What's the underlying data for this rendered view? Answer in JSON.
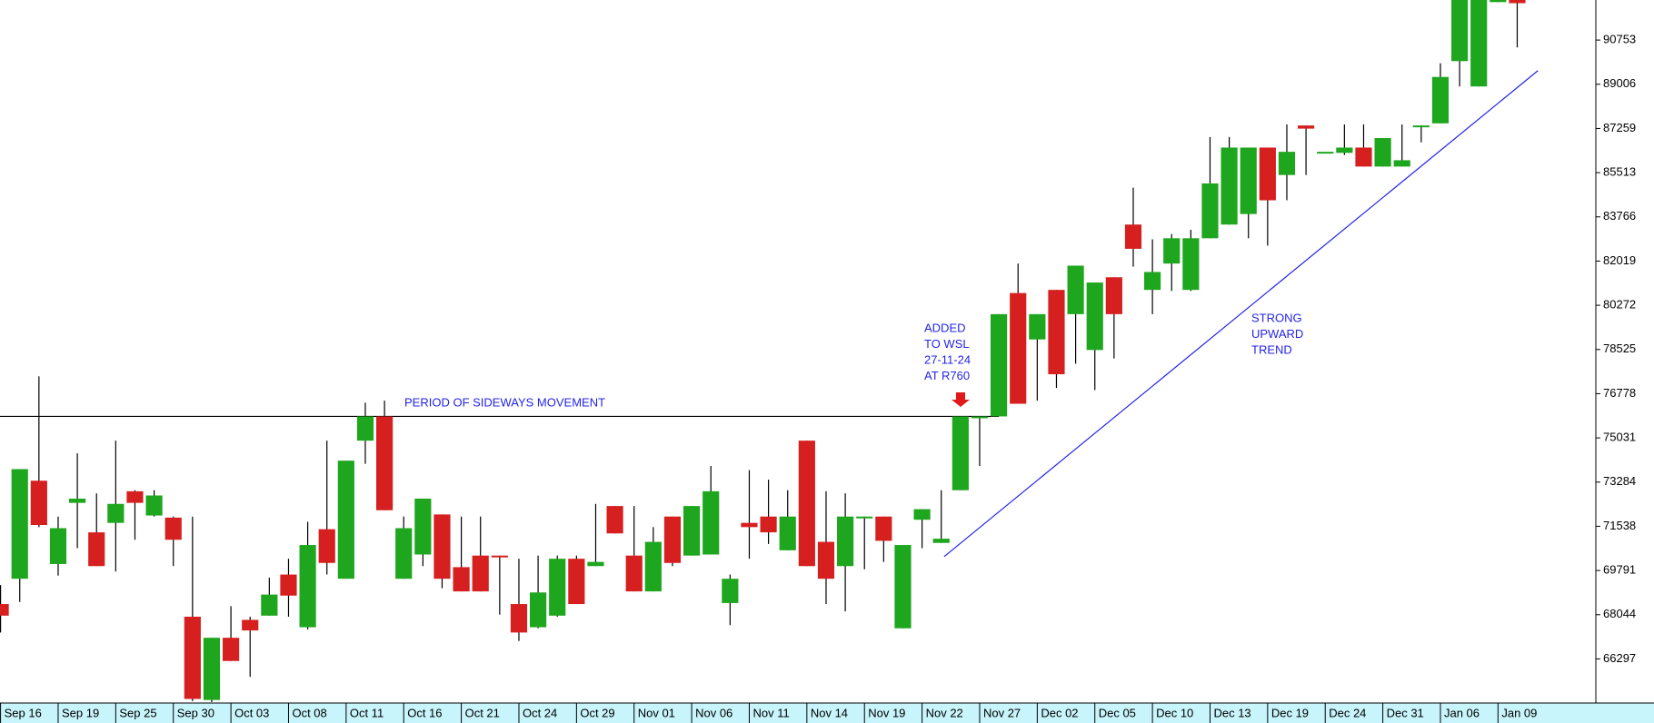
{
  "chart_data": {
    "type": "candlestick",
    "categories": [
      "Sep 16",
      null,
      null,
      "Sep 19",
      null,
      null,
      "Sep 25",
      null,
      null,
      "Sep 30",
      null,
      null,
      "Oct 03",
      null,
      null,
      "Oct 08",
      null,
      null,
      "Oct 11",
      null,
      null,
      "Oct 16",
      null,
      null,
      "Oct 21",
      null,
      null,
      "Oct 24",
      null,
      null,
      "Oct 29",
      null,
      null,
      "Nov 01",
      null,
      null,
      "Nov 06",
      null,
      null,
      "Nov 11",
      null,
      null,
      "Nov 14",
      null,
      null,
      "Nov 19",
      null,
      null,
      "Nov 22",
      null,
      null,
      "Nov 27",
      null,
      null,
      "Dec 02",
      null,
      null,
      "Dec 05",
      null,
      null,
      "Dec 10",
      null,
      null,
      "Dec 13",
      null,
      null,
      "Dec 19",
      null,
      null,
      "Dec 24",
      null,
      null,
      "Dec 31",
      null,
      null,
      "Jan 06",
      null,
      null,
      "Jan 09",
      null
    ],
    "open": [
      68465,
      69465,
      73339,
      70048,
      72464,
      71298,
      71673,
      72922,
      71964,
      71881,
      67965,
      64674,
      67132,
      67840,
      68007,
      69631,
      67548,
      71423,
      69465,
      74922,
      75880,
      69465,
      70423,
      72006,
      69923,
      70381,
      70381,
      68465,
      67548,
      68007,
      70256,
      69965,
      72339,
      70381,
      68965,
      71923,
      70381,
      70423,
      68506,
      71673,
      71923,
      70590,
      74922,
      70923,
      69965,
      71881,
      71923,
      67507,
      71798,
      70881,
      72964,
      75880,
      75880,
      80755,
      78922,
      80880,
      79921,
      78505,
      81379,
      83462,
      80880,
      81921,
      80880,
      82921,
      83462,
      83879,
      86504,
      85420,
      87378,
      86337,
      86295,
      86504,
      85754,
      85754,
      87378,
      87462,
      89920,
      88920,
      92253,
      92336
    ],
    "high": [
      69215,
      73797,
      77463,
      71923,
      74422,
      72839,
      74922,
      72964,
      72964,
      71923,
      71923,
      67132,
      68382,
      67965,
      69506,
      70256,
      71714,
      74922,
      74131,
      76422,
      76505,
      71923,
      72631,
      72006,
      71923,
      71923,
      70381,
      70256,
      70381,
      70381,
      70381,
      72423,
      72339,
      72339,
      71506,
      71923,
      72339,
      73922,
      69631,
      73756,
      73381,
      72964,
      74922,
      72922,
      72839,
      71923,
      71923,
      70798,
      72214,
      72964,
      75880,
      75880,
      79921,
      81921,
      79921,
      80880,
      81838,
      81171,
      81379,
      84920,
      82879,
      83087,
      83254,
      86920,
      86920,
      86504,
      86504,
      87420,
      87378,
      86337,
      87420,
      87420,
      86879,
      87420,
      87378,
      89836,
      92336,
      92336,
      92336,
      92336
    ],
    "low": [
      67340,
      68548,
      71506,
      69590,
      70673,
      69965,
      69756,
      71006,
      71923,
      69965,
      64632,
      64590,
      66215,
      65590,
      68007,
      67965,
      67465,
      69631,
      69465,
      74006,
      72173,
      69465,
      69965,
      69090,
      68965,
      68965,
      68048,
      67007,
      67507,
      67965,
      68465,
      69965,
      71256,
      68965,
      68965,
      69965,
      70381,
      70423,
      67632,
      70256,
      70839,
      70590,
      69965,
      68465,
      68173,
      69840,
      70131,
      67507,
      70673,
      70881,
      72964,
      73922,
      75880,
      76380,
      76505,
      77005,
      77963,
      76922,
      78172,
      81796,
      79921,
      80838,
      80838,
      82921,
      83462,
      82921,
      82629,
      84421,
      85420,
      86337,
      86212,
      85754,
      85754,
      85754,
      86712,
      87462,
      88920,
      88920,
      92253,
      90461
    ],
    "close": [
      68007,
      73797,
      71589,
      71464,
      72631,
      69965,
      72423,
      72464,
      72756,
      71006,
      64715,
      67132,
      66215,
      67423,
      68840,
      68798,
      70798,
      70090,
      74131,
      75880,
      72173,
      71464,
      72631,
      69465,
      68965,
      68965,
      70340,
      67340,
      68923,
      70256,
      68465,
      70131,
      71256,
      68965,
      70923,
      70090,
      72339,
      72922,
      69465,
      71506,
      71298,
      71923,
      69965,
      69465,
      71923,
      71923,
      70964,
      70798,
      72214,
      71048,
      75880,
      75880,
      79921,
      76380,
      79921,
      77547,
      81838,
      81171,
      79921,
      82504,
      81588,
      82921,
      82921,
      85087,
      86504,
      86504,
      84421,
      86337,
      87253,
      86337,
      86504,
      85754,
      86879,
      86004,
      87378,
      89295,
      92336,
      92336,
      92336,
      92211
    ],
    "up_color": "#1ea61e",
    "down_color": "#d61f1f",
    "ylim": [
      64590,
      92336
    ],
    "yticks": [
      66297,
      68044,
      69791,
      71538,
      73284,
      75031,
      76778,
      78525,
      80272,
      82019,
      83766,
      85513,
      87259,
      89006,
      90753
    ],
    "hline": {
      "y": 75880,
      "x": [
        0,
        52
      ],
      "color": "#000000"
    },
    "trendline": {
      "x": [
        49.15,
        80.08
      ],
      "y": [
        70340,
        89545
      ],
      "color": "#2424e8"
    },
    "annotation_color": "#2424e8",
    "annotations": [
      {
        "lines": [
          "PERIOD OF SIDEWAYS MOVEMENT"
        ]
      },
      {
        "lines": [
          "ADDED",
          "TO WSL",
          "27-11-24",
          "AT R760"
        ]
      },
      {
        "lines": [
          "STRONG",
          "UPWARD",
          "TREND"
        ]
      }
    ]
  }
}
